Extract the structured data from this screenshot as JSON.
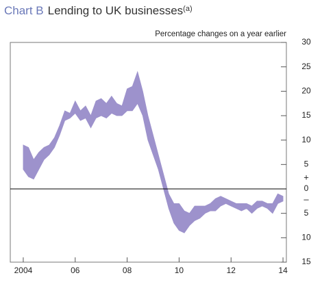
{
  "chart_data": {
    "type": "band",
    "title_label": "Chart B",
    "title": "Lending to UK businesses",
    "title_note": "(a)",
    "subtitle": "Percentage changes on a year earlier",
    "color": "#9d92cc",
    "x": [
      2004.0,
      2004.2,
      2004.4,
      2004.6,
      2004.8,
      2005.0,
      2005.2,
      2005.4,
      2005.6,
      2005.8,
      2006.0,
      2006.2,
      2006.4,
      2006.6,
      2006.8,
      2007.0,
      2007.2,
      2007.4,
      2007.6,
      2007.8,
      2008.0,
      2008.2,
      2008.4,
      2008.6,
      2008.8,
      2009.0,
      2009.2,
      2009.4,
      2009.6,
      2009.8,
      2010.0,
      2010.2,
      2010.4,
      2010.6,
      2010.8,
      2011.0,
      2011.2,
      2011.4,
      2011.6,
      2011.8,
      2012.0,
      2012.2,
      2012.4,
      2012.6,
      2012.8,
      2013.0,
      2013.2,
      2013.4,
      2013.6,
      2013.8,
      2014.0
    ],
    "upper": [
      9,
      8.5,
      6,
      7.5,
      8.5,
      9,
      10.5,
      13,
      16,
      15.5,
      18,
      16,
      17,
      15,
      18,
      18.5,
      17.5,
      19,
      17.5,
      17,
      20.5,
      21,
      24,
      20,
      15,
      11,
      7,
      3,
      -1,
      -3,
      -3,
      -4.5,
      -5,
      -3.5,
      -3.5,
      -3.5,
      -3,
      -2,
      -1.5,
      -2,
      -2.5,
      -3,
      -3,
      -3,
      -3.5,
      -2.5,
      -2.5,
      -3,
      -3,
      -1,
      -1.5
    ],
    "lower": [
      4,
      2.5,
      2,
      4,
      6,
      7,
      8.5,
      11,
      14,
      14.5,
      15.5,
      14,
      14.5,
      12.5,
      14.5,
      15,
      14.5,
      15.5,
      15,
      15,
      16,
      16,
      17.5,
      15,
      10,
      7,
      4,
      0,
      -4,
      -7,
      -8.5,
      -9,
      -7.5,
      -6.5,
      -6,
      -5,
      -4.5,
      -4.5,
      -3.5,
      -3,
      -3.5,
      -4,
      -4.5,
      -4,
      -5,
      -4,
      -3.5,
      -4,
      -5,
      -3,
      -2.5
    ],
    "xlim": [
      2003.5,
      2014.13
    ],
    "xticks": [
      2004,
      {
        "value": 2006,
        "label": "06"
      },
      {
        "value": 2008,
        "label": "08"
      },
      {
        "value": 2010,
        "label": "10"
      },
      {
        "value": 2012,
        "label": "12"
      },
      {
        "value": 2014,
        "label": "14"
      }
    ],
    "ylim": [
      -15,
      30
    ],
    "yticks": [
      30,
      25,
      20,
      15,
      10,
      5,
      0,
      {
        "value": -5,
        "label": "5"
      },
      {
        "value": -10,
        "label": "10"
      },
      {
        "value": -15,
        "label": "15"
      }
    ],
    "sign_labels": [
      "+",
      "–"
    ]
  }
}
